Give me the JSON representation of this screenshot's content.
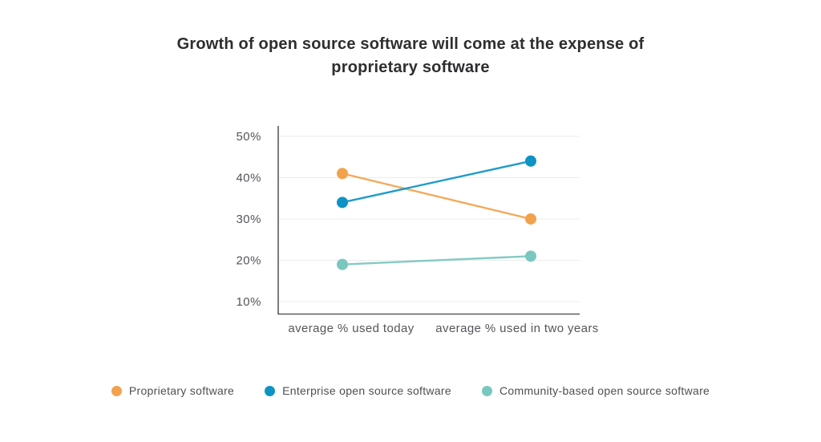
{
  "page": {
    "background": "#ffffff"
  },
  "chart_data": {
    "type": "line",
    "title": "Growth of open source software will come at the expense of proprietary software",
    "categories": [
      "average % used today",
      "average % used in two years"
    ],
    "series": [
      {
        "name": "Proprietary software",
        "color": "#F2A24C",
        "values": [
          41,
          30
        ]
      },
      {
        "name": "Enterprise open source software",
        "color": "#0E93C5",
        "values": [
          34,
          44
        ]
      },
      {
        "name": "Community-based open source software",
        "color": "#7AC7C0",
        "values": [
          19,
          21
        ]
      }
    ],
    "y_ticks": [
      50,
      40,
      30,
      20,
      10
    ],
    "y_tick_suffix": "%",
    "ylim": [
      7,
      52.5
    ],
    "grid": true,
    "legend_position": "bottom",
    "colors": {
      "axis_line": "#5B5C5E",
      "grid_line": "#EBECEC",
      "tick_text": "#55565A",
      "title_text": "#2E2E30",
      "legend_text": "#4E4F52"
    }
  }
}
